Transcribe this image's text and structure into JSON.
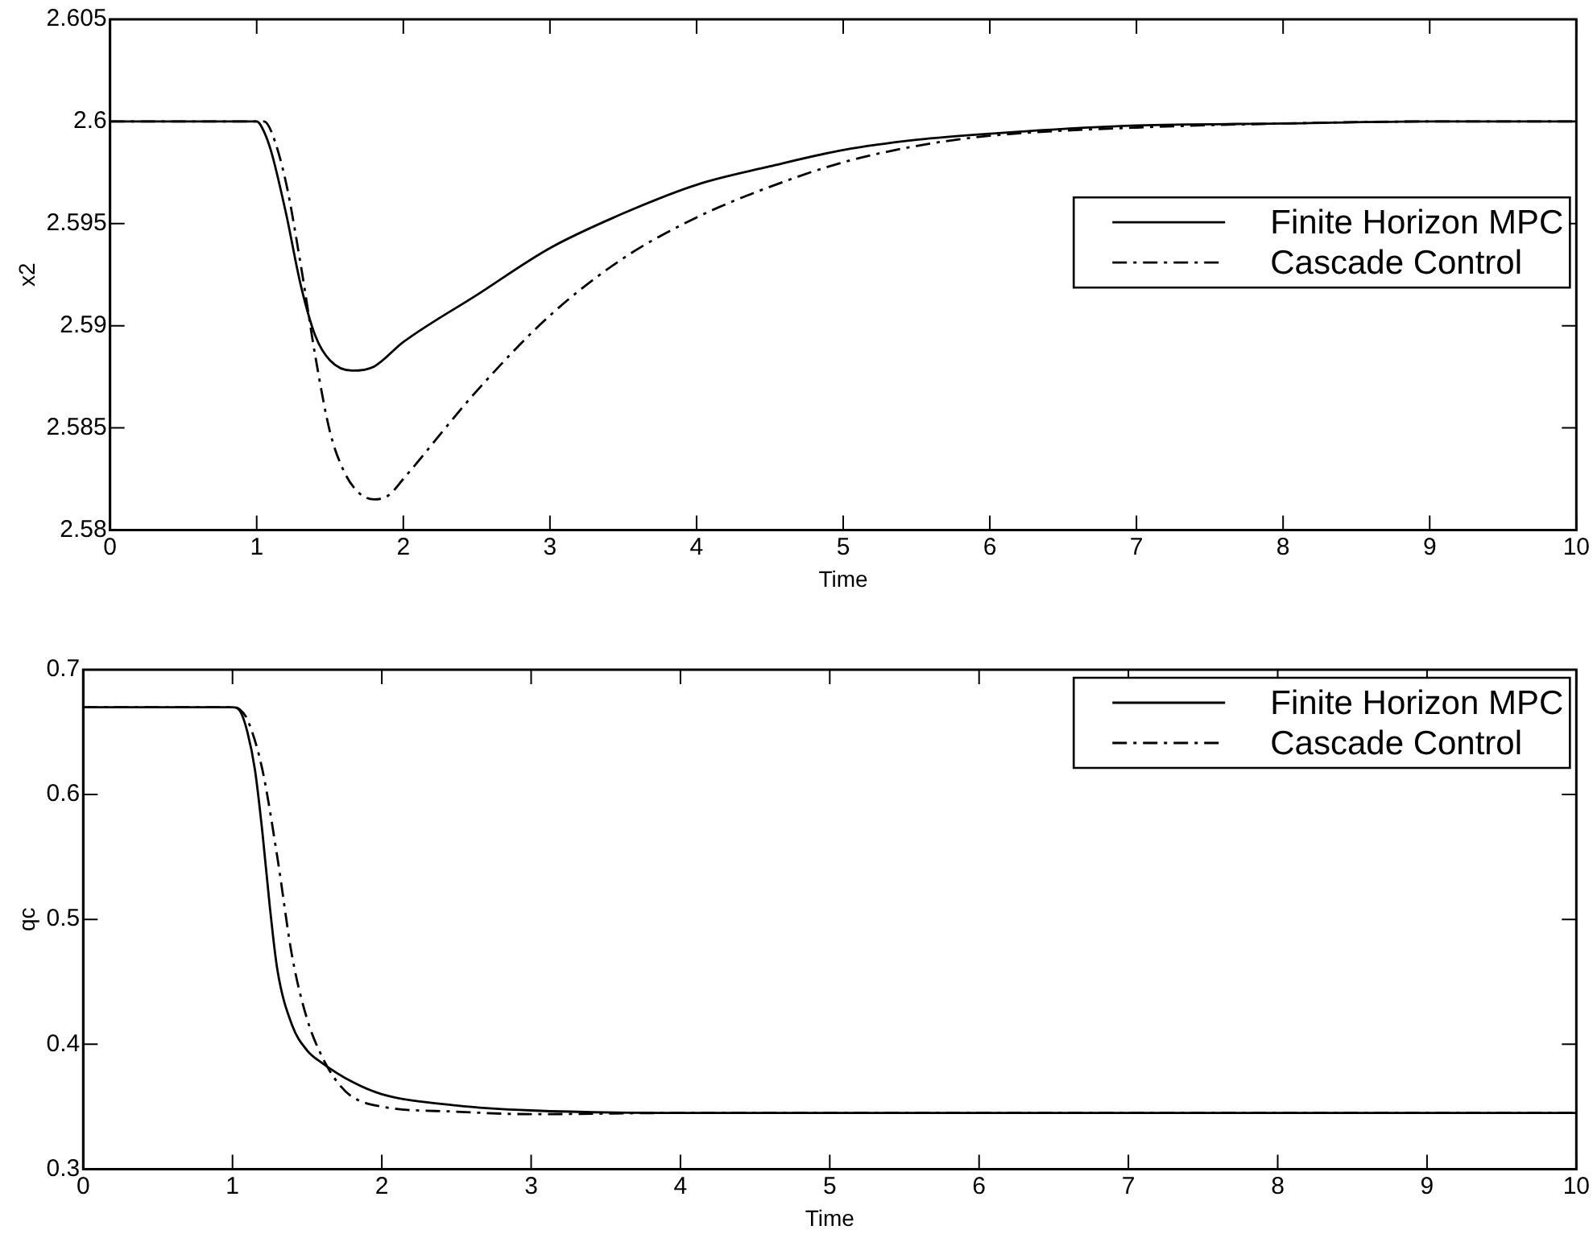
{
  "chart_data": [
    {
      "type": "line",
      "xlabel": "Time",
      "ylabel": "x2",
      "xlim": [
        0,
        10
      ],
      "ylim": [
        2.58,
        2.605
      ],
      "xticks": [
        0,
        1,
        2,
        3,
        4,
        5,
        6,
        7,
        8,
        9,
        10
      ],
      "yticks": [
        2.58,
        2.585,
        2.59,
        2.595,
        2.6,
        2.605
      ],
      "legend": "right",
      "grid": false,
      "x": [
        0,
        0.5,
        1,
        1.05,
        1.1,
        1.2,
        1.3,
        1.4,
        1.5,
        1.65,
        1.8,
        2,
        2.5,
        3,
        3.5,
        4,
        4.5,
        5,
        5.5,
        6,
        7,
        8,
        9,
        10
      ],
      "series": [
        {
          "name": "Finite Horizon MPC",
          "color": "#000000",
          "line_style": "solid",
          "values": [
            2.6,
            2.6,
            2.6,
            2.5995,
            2.5985,
            2.5955,
            2.592,
            2.5895,
            2.5883,
            2.5878,
            2.588,
            2.5892,
            2.5915,
            2.5938,
            2.5955,
            2.5969,
            2.5978,
            2.5986,
            2.5991,
            2.5994,
            2.5998,
            2.5999,
            2.6,
            2.6
          ]
        },
        {
          "name": "Cascade Control",
          "color": "#000000",
          "line_style": "dashdot",
          "x": [
            0,
            0.5,
            1,
            1.05,
            1.1,
            1.2,
            1.3,
            1.4,
            1.5,
            1.6,
            1.7,
            1.8,
            1.9,
            2,
            2.5,
            3,
            3.5,
            4,
            4.5,
            5,
            5.5,
            6,
            7,
            8,
            9,
            10
          ],
          "values": [
            2.6,
            2.6,
            2.6,
            2.6,
            2.5995,
            2.597,
            2.593,
            2.5885,
            2.5848,
            2.5828,
            2.5818,
            2.5815,
            2.5817,
            2.5825,
            2.5868,
            2.5905,
            2.5933,
            2.5953,
            2.5968,
            2.598,
            2.5988,
            2.5993,
            2.5997,
            2.5999,
            2.6,
            2.6
          ]
        }
      ]
    },
    {
      "type": "line",
      "xlabel": "Time",
      "ylabel": "qc",
      "xlim": [
        0,
        10
      ],
      "ylim": [
        0.3,
        0.7
      ],
      "xticks": [
        0,
        1,
        2,
        3,
        4,
        5,
        6,
        7,
        8,
        9,
        10
      ],
      "yticks": [
        0.3,
        0.4,
        0.5,
        0.6,
        0.7
      ],
      "legend": "top right",
      "grid": false,
      "x": [
        0,
        0.5,
        1,
        1.05,
        1.1,
        1.15,
        1.2,
        1.25,
        1.3,
        1.4,
        1.5,
        1.6,
        1.8,
        2,
        2.5,
        3,
        4,
        5,
        6,
        8,
        10
      ],
      "series": [
        {
          "name": "Finite Horizon MPC",
          "color": "#000000",
          "line_style": "solid",
          "values": [
            0.67,
            0.67,
            0.67,
            0.667,
            0.65,
            0.62,
            0.57,
            0.51,
            0.46,
            0.415,
            0.395,
            0.385,
            0.37,
            0.36,
            0.351,
            0.347,
            0.345,
            0.345,
            0.345,
            0.345,
            0.345
          ]
        },
        {
          "name": "Cascade Control",
          "color": "#000000",
          "line_style": "dashdot",
          "x": [
            0,
            0.5,
            1,
            1.05,
            1.1,
            1.2,
            1.3,
            1.4,
            1.5,
            1.6,
            1.7,
            1.8,
            2,
            2.5,
            3,
            4,
            5,
            6,
            8,
            10
          ],
          "values": [
            0.67,
            0.67,
            0.67,
            0.668,
            0.66,
            0.62,
            0.55,
            0.47,
            0.42,
            0.39,
            0.37,
            0.358,
            0.35,
            0.346,
            0.344,
            0.345,
            0.345,
            0.345,
            0.345,
            0.345
          ]
        }
      ]
    }
  ]
}
